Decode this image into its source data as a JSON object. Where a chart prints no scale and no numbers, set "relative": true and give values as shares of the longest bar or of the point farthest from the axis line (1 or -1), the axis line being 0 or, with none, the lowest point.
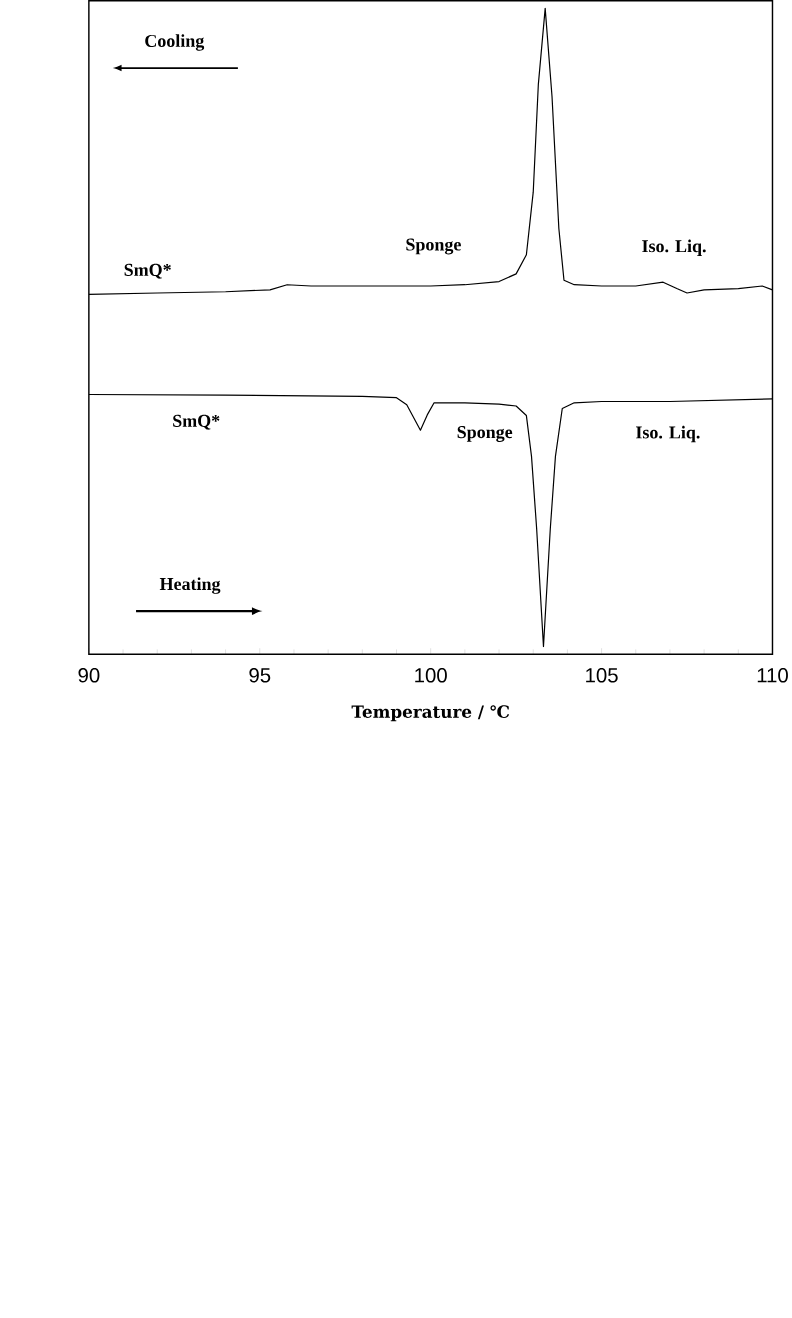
{
  "chart_data": {
    "type": "line",
    "relative": true,
    "xlabel": "Temperature / ℃",
    "xlim": [
      90,
      110
    ],
    "xticks": [
      90,
      95,
      100,
      105,
      110
    ],
    "tick_labels": "x",
    "annotations": [
      "Cooling",
      "SmQ*",
      "Sponge",
      "Iso. Liq.",
      "SmQ*",
      "Sponge",
      "Iso. Liq.",
      "Heating"
    ],
    "series": [
      {
        "color": "#000000",
        "x": [
          90,
          92,
          94,
          95.3,
          95.8,
          96.5,
          98,
          100,
          101,
          102,
          102.5,
          102.8,
          103,
          103.15,
          103.35,
          103.55,
          103.75,
          103.9,
          104.2,
          105,
          106,
          106.8,
          107.2,
          107.5,
          108,
          109,
          109.7,
          110
        ],
        "values": [
          0.552,
          0.554,
          0.556,
          0.559,
          0.567,
          0.565,
          0.565,
          0.565,
          0.567,
          0.572,
          0.584,
          0.614,
          0.712,
          0.881,
          1.0,
          0.862,
          0.655,
          0.574,
          0.567,
          0.565,
          0.565,
          0.571,
          0.561,
          0.554,
          0.559,
          0.561,
          0.565,
          0.559
        ]
      },
      {
        "color": "#000000",
        "x": [
          90,
          94,
          98,
          99,
          99.3,
          99.7,
          99.9,
          100.1,
          101,
          102,
          102.5,
          102.8,
          102.95,
          103.1,
          103.3,
          103.5,
          103.65,
          103.85,
          104.2,
          105,
          107,
          110
        ],
        "values": [
          0.395,
          0.394,
          0.392,
          0.39,
          0.379,
          0.339,
          0.363,
          0.382,
          0.382,
          0.38,
          0.377,
          0.362,
          0.298,
          0.185,
          0.0,
          0.185,
          0.298,
          0.373,
          0.382,
          0.384,
          0.384,
          0.388
        ]
      }
    ]
  }
}
